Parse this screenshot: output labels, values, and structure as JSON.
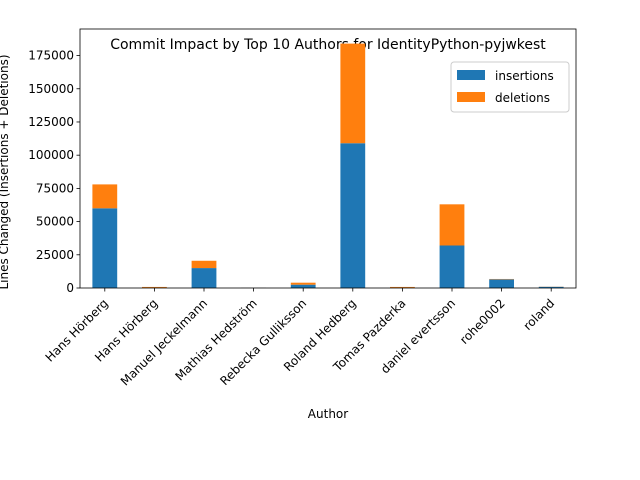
{
  "chart_data": {
    "type": "bar",
    "stacked": true,
    "title": "Commit Impact by Top 10 Authors for IdentityPython-pyjwkest",
    "xlabel": "Author",
    "ylabel": "Lines Changed (Insertions + Deletions)",
    "categories": [
      "Hans Hörberg",
      "Hans Hörberg",
      "Manuel Jeckelmann",
      "Mathias Hedström",
      "Rebecka Gulliksson",
      "Roland Hedberg",
      "Tomas Pazderka",
      "daniel evertsson",
      "rohe0002",
      "roland"
    ],
    "series": [
      {
        "name": "insertions",
        "color": "#1f77b4",
        "values": [
          60000,
          300,
          15000,
          100,
          2500,
          109000,
          300,
          32000,
          6500,
          900
        ]
      },
      {
        "name": "deletions",
        "color": "#ff7f0e",
        "values": [
          18000,
          500,
          5500,
          50,
          1500,
          75000,
          500,
          31000,
          300,
          100
        ]
      }
    ],
    "ylim": [
      0,
      195000
    ],
    "yticks": [
      0,
      25000,
      50000,
      75000,
      100000,
      125000,
      150000,
      175000
    ],
    "legend_position": "upper-right",
    "grid": false
  }
}
